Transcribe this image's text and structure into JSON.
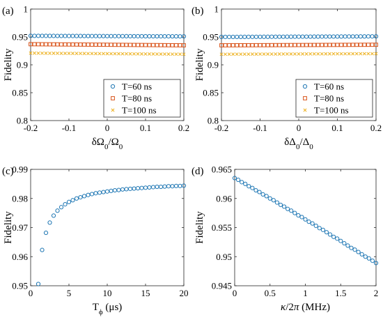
{
  "chart_data": [
    {
      "panel_label": "(a)",
      "type": "scatter",
      "xlabel": "δΩ0/Ω0",
      "xlabel_parts": [
        {
          "t": "δΩ",
          "sub": false
        },
        {
          "t": "0",
          "sub": true
        },
        {
          "t": "/Ω",
          "sub": false
        },
        {
          "t": "0",
          "sub": true
        }
      ],
      "ylabel": "Fidelity",
      "xlim": [
        -0.2,
        0.2
      ],
      "ylim": [
        0.8,
        1.0
      ],
      "xticks": [
        -0.2,
        -0.1,
        0,
        0.1,
        0.2
      ],
      "xtick_labels": [
        "-0.2",
        "-0.1",
        "0",
        "0.1",
        "0.2"
      ],
      "yticks": [
        0.8,
        0.85,
        0.9,
        0.95,
        1.0
      ],
      "ytick_labels": [
        "0.8",
        "0.85",
        "0.9",
        "0.95",
        "1"
      ],
      "legend_position": "bottom-right",
      "series": [
        {
          "name": "T=60 ns",
          "marker": "circle",
          "color": "#1f77b4",
          "x_start": -0.2,
          "x_end": 0.2,
          "n": 41,
          "y_start": 0.952,
          "y_end": 0.951
        },
        {
          "name": "T=80 ns",
          "marker": "square",
          "color": "#d95319",
          "x_start": -0.2,
          "x_end": 0.2,
          "n": 41,
          "y_start": 0.937,
          "y_end": 0.935
        },
        {
          "name": "T=100 ns",
          "marker": "x",
          "color": "#edb120",
          "x_start": -0.2,
          "x_end": 0.2,
          "n": 41,
          "y_start": 0.921,
          "y_end": 0.919
        }
      ]
    },
    {
      "panel_label": "(b)",
      "type": "scatter",
      "xlabel": "δΔ0/Δ0",
      "xlabel_parts": [
        {
          "t": "δΔ",
          "sub": false
        },
        {
          "t": "0",
          "sub": true
        },
        {
          "t": "/Δ",
          "sub": false
        },
        {
          "t": "0",
          "sub": true
        }
      ],
      "ylabel": "Fidelity",
      "xlim": [
        -0.2,
        0.2
      ],
      "ylim": [
        0.8,
        1.0
      ],
      "xticks": [
        -0.2,
        -0.1,
        0,
        0.1,
        0.2
      ],
      "xtick_labels": [
        "-0.2",
        "-0.1",
        "0",
        "0.1",
        "0.2"
      ],
      "yticks": [
        0.8,
        0.85,
        0.9,
        0.95,
        1.0
      ],
      "ytick_labels": [
        "0.8",
        "0.85",
        "0.9",
        "0.95",
        "1"
      ],
      "legend_position": "bottom-right",
      "series": [
        {
          "name": "T=60 ns",
          "marker": "circle",
          "color": "#1f77b4",
          "x_start": -0.2,
          "x_end": 0.2,
          "n": 41,
          "y_start": 0.95,
          "y_end": 0.951
        },
        {
          "name": "T=80 ns",
          "marker": "square",
          "color": "#d95319",
          "x_start": -0.2,
          "x_end": 0.2,
          "n": 41,
          "y_start": 0.935,
          "y_end": 0.936
        },
        {
          "name": "T=100 ns",
          "marker": "x",
          "color": "#edb120",
          "x_start": -0.2,
          "x_end": 0.2,
          "n": 41,
          "y_start": 0.919,
          "y_end": 0.92
        }
      ]
    },
    {
      "panel_label": "(c)",
      "type": "scatter",
      "xlabel": "Tϕ (μs)",
      "xlabel_parts": [
        {
          "t": "T",
          "sub": false
        },
        {
          "t": "ϕ",
          "sub": true
        },
        {
          "t": " (μs)",
          "sub": false
        }
      ],
      "ylabel": "Fidelity",
      "xlim": [
        0,
        20
      ],
      "ylim": [
        0.95,
        0.99
      ],
      "xticks": [
        0,
        5,
        10,
        15,
        20
      ],
      "xtick_labels": [
        "0",
        "5",
        "10",
        "15",
        "20"
      ],
      "yticks": [
        0.95,
        0.96,
        0.97,
        0.98,
        0.99
      ],
      "ytick_labels": [
        "0.95",
        "0.96",
        "0.97",
        "0.98",
        "0.99"
      ],
      "series": [
        {
          "marker": "circle",
          "color": "#1f77b4",
          "x": [
            1.0,
            1.5,
            2.0,
            2.5,
            3.0,
            3.5,
            4.0,
            4.5,
            5.0,
            5.5,
            6.0,
            6.5,
            7.0,
            7.5,
            8.0,
            8.5,
            9.0,
            9.5,
            10.0,
            10.5,
            11.0,
            11.5,
            12.0,
            12.5,
            13.0,
            13.5,
            14.0,
            14.5,
            15.0,
            15.5,
            16.0,
            16.5,
            17.0,
            17.5,
            18.0,
            18.5,
            19.0,
            19.5,
            20.0
          ],
          "y": [
            0.9506,
            0.9623,
            0.9682,
            0.9717,
            0.9741,
            0.9758,
            0.977,
            0.978,
            0.9788,
            0.9794,
            0.98,
            0.9804,
            0.9808,
            0.9812,
            0.9815,
            0.9818,
            0.982,
            0.9822,
            0.9824,
            0.9826,
            0.9828,
            0.9829,
            0.9831,
            0.9832,
            0.9833,
            0.9834,
            0.9835,
            0.9836,
            0.9837,
            0.9838,
            0.9839,
            0.984,
            0.984,
            0.9841,
            0.9842,
            0.9842,
            0.9843,
            0.9843,
            0.9844
          ]
        }
      ]
    },
    {
      "panel_label": "(d)",
      "type": "scatter",
      "xlabel": "κ/2π (MHz)",
      "xlabel_parts": [
        {
          "t": "κ",
          "sub": false,
          "italic": true
        },
        {
          "t": "/2",
          "sub": false
        },
        {
          "t": "π",
          "sub": false,
          "italic": true
        },
        {
          "t": " (MHz)",
          "sub": false
        }
      ],
      "ylabel": "Fidelity",
      "xlim": [
        0,
        2
      ],
      "ylim": [
        0.945,
        0.965
      ],
      "xticks": [
        0,
        0.5,
        1,
        1.5,
        2
      ],
      "xtick_labels": [
        "0",
        "0.5",
        "1",
        "1.5",
        "2"
      ],
      "yticks": [
        0.945,
        0.95,
        0.955,
        0.96,
        0.965
      ],
      "ytick_labels": [
        "0.945",
        "0.95",
        "0.955",
        "0.96",
        "0.965"
      ],
      "series": [
        {
          "marker": "circle",
          "color": "#1f77b4",
          "x": [
            0,
            0.05,
            0.1,
            0.15,
            0.2,
            0.25,
            0.3,
            0.35,
            0.4,
            0.45,
            0.5,
            0.55,
            0.6,
            0.65,
            0.7,
            0.75,
            0.8,
            0.85,
            0.9,
            0.95,
            1.0,
            1.05,
            1.1,
            1.15,
            1.2,
            1.25,
            1.3,
            1.35,
            1.4,
            1.45,
            1.5,
            1.55,
            1.6,
            1.65,
            1.7,
            1.75,
            1.8,
            1.85,
            1.9,
            1.95,
            2.0
          ],
          "y": [
            0.9635,
            0.9632,
            0.9628,
            0.9625,
            0.9621,
            0.9618,
            0.9614,
            0.9611,
            0.9607,
            0.9604,
            0.96,
            0.9597,
            0.9593,
            0.9589,
            0.9586,
            0.9582,
            0.9579,
            0.9575,
            0.9571,
            0.9568,
            0.9564,
            0.956,
            0.9557,
            0.9553,
            0.9549,
            0.9546,
            0.9542,
            0.9538,
            0.9534,
            0.9531,
            0.9527,
            0.9523,
            0.9519,
            0.9515,
            0.9512,
            0.9508,
            0.9504,
            0.95,
            0.9497,
            0.9493,
            0.9489
          ]
        }
      ]
    }
  ]
}
